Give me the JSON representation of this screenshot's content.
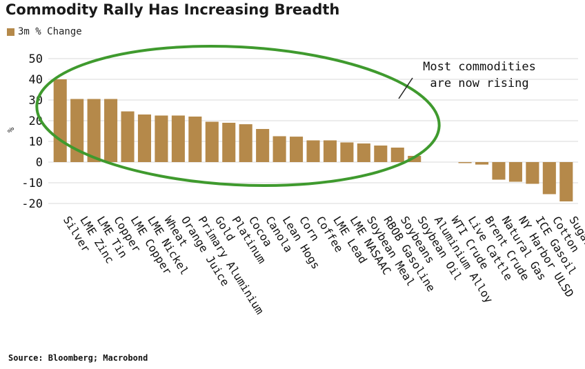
{
  "title": "Commodity Rally Has Increasing Breadth",
  "legend": {
    "label": "3m % Change",
    "color": "#b5894a"
  },
  "source": "Source: Bloomberg; Macrobond",
  "annotation": {
    "line1": "Most commodities",
    "line2": "are now rising",
    "ellipse_color": "#3f9a2e"
  },
  "chart_data": {
    "type": "bar",
    "ylabel": "%",
    "ylim": [
      -25,
      55
    ],
    "yticks": [
      -20,
      -10,
      0,
      10,
      20,
      30,
      40,
      50
    ],
    "grid": true,
    "series": [
      {
        "name": "3m % Change",
        "color": "#b5894a"
      }
    ],
    "categories": [
      "Silver",
      "LME Zinc",
      "LME Tin",
      "Copper",
      "LME Copper",
      "LME Nickel",
      "Wheat",
      "Orange Juice",
      "Primary Aluminium",
      "Gold",
      "Platinum",
      "Cocoa",
      "Canola",
      "Lean Hogs",
      "Corn",
      "Coffee",
      "LME Lead",
      "LME NASAAC",
      "Soybean Meal",
      "RBOB Gasoline",
      "Soybeans",
      "Soybean Oil",
      "Aluminium Alloy",
      "WTI Crude",
      "Live Cattle",
      "Brent Crude",
      "Natural Gas",
      "NY Harbor ULSD",
      "ICE Gasoil",
      "Cotton",
      "Sugar"
    ],
    "values": [
      40,
      30.5,
      30.5,
      30.5,
      24.5,
      23,
      22.5,
      22.5,
      22,
      19.5,
      19,
      18.3,
      16,
      12.5,
      12.3,
      10.5,
      10.5,
      9.5,
      9,
      8,
      7,
      3,
      0,
      0,
      -0.5,
      -1.2,
      -8.5,
      -9.5,
      -10.5,
      -15.5,
      -19
    ]
  }
}
